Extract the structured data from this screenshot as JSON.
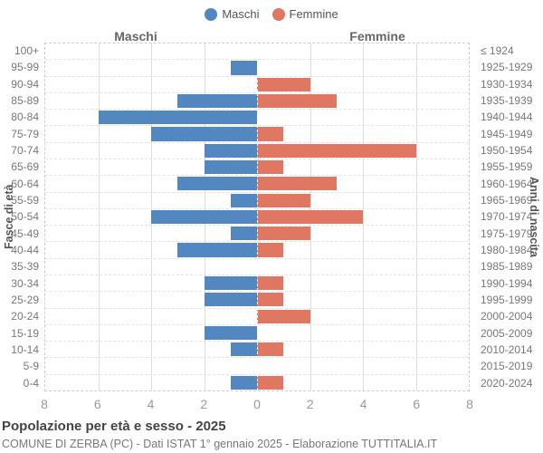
{
  "legend": {
    "items": [
      {
        "label": "Maschi",
        "color": "#5287c0"
      },
      {
        "label": "Femmine",
        "color": "#e07763"
      }
    ]
  },
  "headers": {
    "left": "Maschi",
    "right": "Femmine"
  },
  "axes": {
    "y_left_title": "Fasce di età",
    "y_right_title": "Anni di nascita",
    "x_tick_labels": [
      "8",
      "6",
      "4",
      "2",
      "0",
      "2",
      "4",
      "6",
      "8"
    ],
    "x_max": 8
  },
  "chart_data": {
    "type": "bar",
    "subtype": "population-pyramid",
    "orientation": "horizontal",
    "grid": true,
    "legend_position": "top",
    "xlim": [
      0,
      8
    ],
    "categories": [
      "100+",
      "95-99",
      "90-94",
      "85-89",
      "80-84",
      "75-79",
      "70-74",
      "65-69",
      "60-64",
      "55-59",
      "50-54",
      "45-49",
      "40-44",
      "35-39",
      "30-34",
      "25-29",
      "20-24",
      "15-19",
      "10-14",
      "5-9",
      "0-4"
    ],
    "birth_year_labels": [
      "≤ 1924",
      "1925-1929",
      "1930-1934",
      "1935-1939",
      "1940-1944",
      "1945-1949",
      "1950-1954",
      "1955-1959",
      "1960-1964",
      "1965-1969",
      "1970-1974",
      "1975-1979",
      "1980-1984",
      "1985-1989",
      "1990-1994",
      "1995-1999",
      "2000-2004",
      "2005-2009",
      "2010-2014",
      "2015-2019",
      "2020-2024"
    ],
    "series": [
      {
        "name": "Maschi",
        "color": "#5287c0",
        "values": [
          0,
          1,
          0,
          3,
          6,
          4,
          2,
          2,
          3,
          1,
          4,
          1,
          3,
          0,
          2,
          2,
          0,
          2,
          1,
          0,
          1
        ]
      },
      {
        "name": "Femmine",
        "color": "#e07763",
        "values": [
          0,
          0,
          2,
          3,
          0,
          1,
          6,
          1,
          3,
          2,
          4,
          2,
          1,
          0,
          1,
          1,
          2,
          0,
          1,
          0,
          1
        ]
      }
    ]
  },
  "footer": {
    "title": "Popolazione per età e sesso - 2025",
    "subtitle": "COMUNE DI ZERBA (PC) - Dati ISTAT 1° gennaio 2025 - Elaborazione TUTTITALIA.IT"
  }
}
